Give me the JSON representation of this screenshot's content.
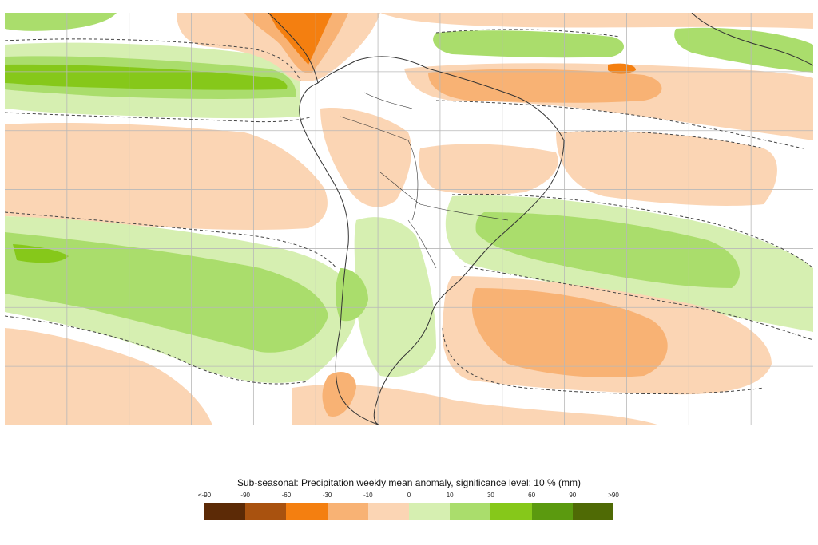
{
  "legend": {
    "title": "Sub-seasonal: Precipitation weekly mean anomaly, significance level: 10 % (mm)",
    "ticks": [
      "<-90",
      "-90",
      "-60",
      "-30",
      "-10",
      "0",
      "10",
      "30",
      "60",
      "90",
      ">90"
    ],
    "colors": [
      "#5c2a06",
      "#a9520f",
      "#f47f10",
      "#f8b274",
      "#fbd5b4",
      "#ffffff",
      "#d6efb1",
      "#aadd6c",
      "#86c81a",
      "#5b9a0f",
      "#4f6a05"
    ]
  },
  "map": {
    "region": "South America and adjacent oceans",
    "palette": {
      "dry_strong": "#f47f10",
      "dry_moderate": "#f8b274",
      "dry_weak": "#fbd5b4",
      "wet_weak": "#d6efb1",
      "wet_moderate": "#aadd6c",
      "wet_strong": "#86c81a",
      "wet_very_strong": "#5b9a0f",
      "grid": "#b8b8b8",
      "coast": "#333333",
      "significance_contour": "#444444"
    }
  }
}
